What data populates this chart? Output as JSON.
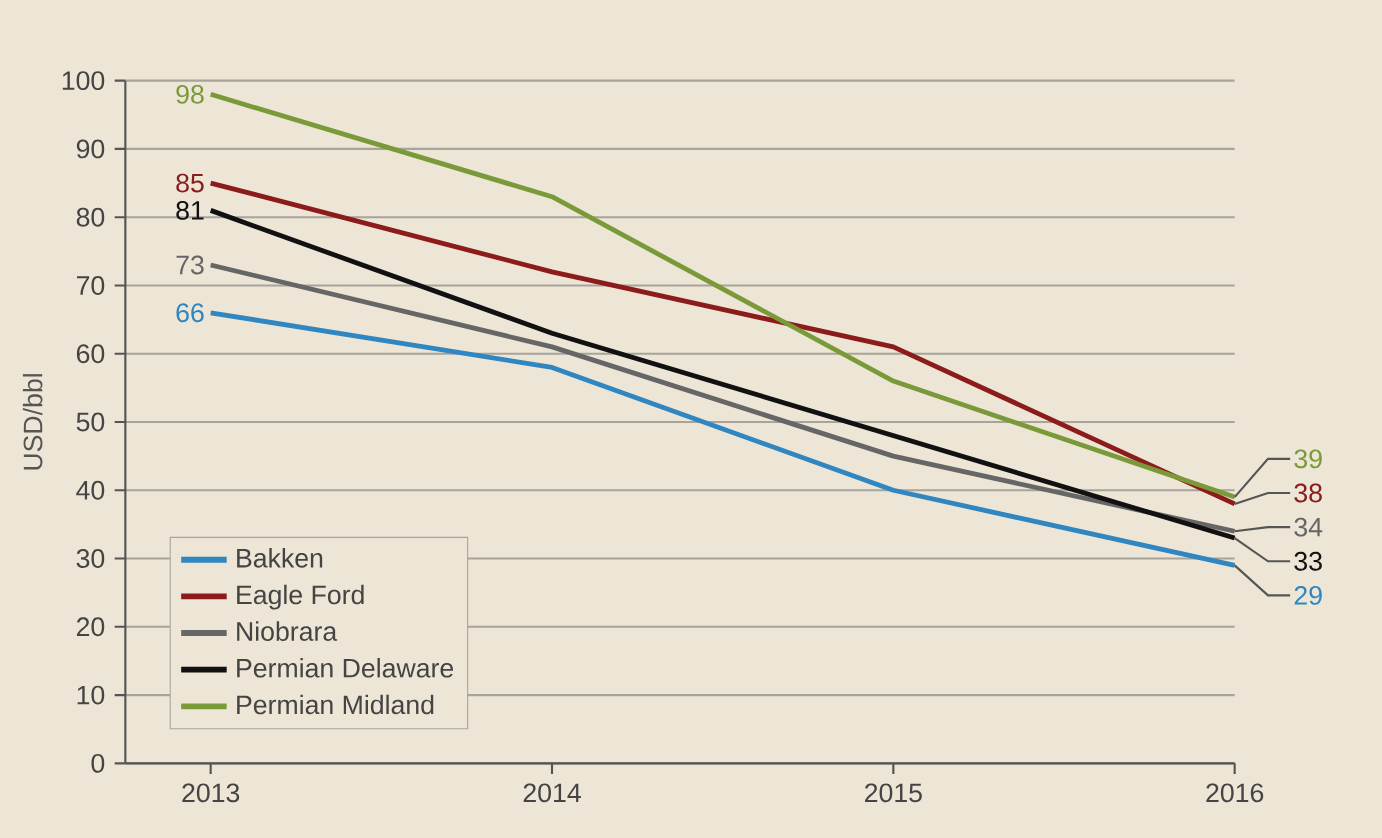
{
  "chart_data": {
    "type": "line",
    "ylabel": "USD/bbl",
    "x": [
      2013,
      2014,
      2015,
      2016
    ],
    "xlim": [
      2012.75,
      2016
    ],
    "xticks": [
      2013,
      2014,
      2015,
      2016
    ],
    "ylim": [
      0,
      100
    ],
    "yticks": [
      0,
      10,
      20,
      30,
      40,
      50,
      60,
      70,
      80,
      90,
      100
    ],
    "grid": "y",
    "legend": "bottom left",
    "series": [
      {
        "name": "Bakken",
        "color": "#2f86c0",
        "values": [
          66,
          58,
          40,
          29
        ],
        "value_labels": [
          "66",
          null,
          null,
          "29"
        ]
      },
      {
        "name": "Eagle Ford",
        "color": "#8c1c1c",
        "values": [
          85,
          72,
          61,
          38
        ],
        "value_labels": [
          "85",
          null,
          null,
          "38"
        ]
      },
      {
        "name": "Niobrara",
        "color": "#666666",
        "values": [
          73,
          61,
          45,
          34
        ],
        "value_labels": [
          "73",
          null,
          null,
          "34"
        ]
      },
      {
        "name": "Permian Delaware",
        "color": "#111111",
        "values": [
          81,
          63,
          48,
          33
        ],
        "value_labels": [
          "81",
          null,
          null,
          "33"
        ]
      },
      {
        "name": "Permian Midland",
        "color": "#7a9a3a",
        "values": [
          98,
          83,
          56,
          39
        ],
        "value_labels": [
          "98",
          null,
          null,
          "39"
        ]
      }
    ]
  }
}
